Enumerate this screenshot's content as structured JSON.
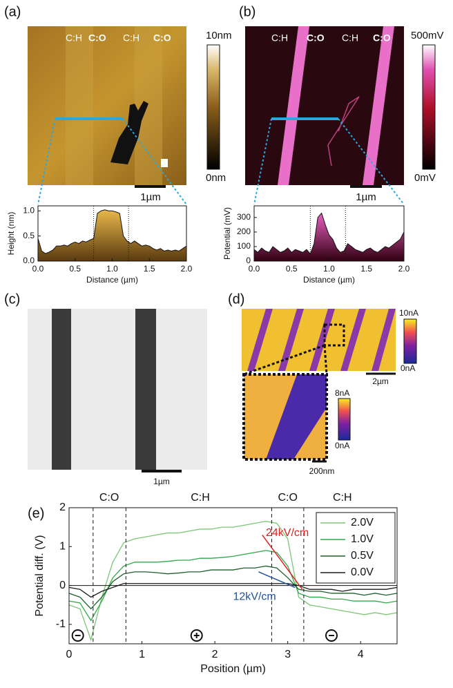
{
  "images": [
    {
      "label": "(a)",
      "texts": [
        "C:H",
        "C:O",
        "C:H",
        "C:O"
      ],
      "colorbar": [
        "10nm",
        "0nm"
      ],
      "scale": "1µm"
    },
    {
      "label": "(b)",
      "texts": [
        "C:H",
        "C:O",
        "C:H",
        "C:O"
      ],
      "colorbar": [
        "500mV",
        "0mV"
      ],
      "scale": "1µm"
    },
    {
      "label": "(c)",
      "scale": "1µm"
    },
    {
      "label": "(d)",
      "colorbar": [
        "10nA",
        "0nA"
      ],
      "scale": "2µm",
      "inset_colorbar": [
        "8nA",
        "0nA"
      ],
      "inset_scale": "200nm"
    },
    {
      "label": "(e)"
    }
  ],
  "chart_data": [
    {
      "type": "area",
      "ylabel": "Height (nm)",
      "xlabel": "Distance (µm)",
      "color": "#b8862b",
      "x": [
        0,
        0.05,
        0.1,
        0.15,
        0.2,
        0.25,
        0.3,
        0.35,
        0.4,
        0.45,
        0.5,
        0.55,
        0.6,
        0.65,
        0.7,
        0.75,
        0.8,
        0.85,
        0.9,
        0.95,
        1,
        1.05,
        1.1,
        1.15,
        1.2,
        1.25,
        1.3,
        1.35,
        1.4,
        1.45,
        1.5,
        1.55,
        1.6,
        1.65,
        1.7,
        1.75,
        1.8,
        1.85,
        1.9,
        1.95,
        2
      ],
      "values": [
        0.45,
        0.2,
        0.15,
        0.18,
        0.22,
        0.3,
        0.3,
        0.32,
        0.3,
        0.35,
        0.38,
        0.35,
        0.4,
        0.38,
        0.42,
        0.45,
        0.95,
        1,
        1.02,
        1,
        1,
        0.98,
        0.95,
        0.5,
        0.4,
        0.35,
        0.4,
        0.35,
        0.3,
        0.32,
        0.3,
        0.25,
        0.22,
        0.25,
        0.2,
        0.22,
        0.2,
        0.22,
        0.2,
        0.25,
        0.3
      ],
      "xlim": [
        0,
        2
      ],
      "ylim": [
        0,
        1.1
      ],
      "xticks": [
        {
          "value": 0,
          "label": "0.0"
        },
        {
          "value": 0.5,
          "label": "0.5"
        },
        {
          "value": 1,
          "label": "1.0"
        },
        {
          "value": 1.5,
          "label": "1.5"
        },
        {
          "value": 2,
          "label": "2.0"
        }
      ],
      "yticks": [
        {
          "value": 0,
          "label": "0.0"
        },
        {
          "value": 0.5,
          "label": "0.5"
        },
        {
          "value": 1,
          "label": "1.0"
        }
      ],
      "vlines": [
        0.75,
        1.22
      ]
    },
    {
      "type": "area",
      "ylabel": "Potential (mV)",
      "xlabel": "Distance (µm)",
      "color": "#c2237a",
      "x": [
        0,
        0.05,
        0.1,
        0.15,
        0.2,
        0.25,
        0.3,
        0.35,
        0.4,
        0.45,
        0.5,
        0.55,
        0.6,
        0.65,
        0.7,
        0.75,
        0.8,
        0.85,
        0.9,
        0.95,
        1,
        1.05,
        1.1,
        1.15,
        1.2,
        1.25,
        1.3,
        1.35,
        1.4,
        1.45,
        1.5,
        1.55,
        1.6,
        1.65,
        1.7,
        1.75,
        1.8,
        1.85,
        1.9,
        1.95,
        2
      ],
      "values": [
        80,
        60,
        90,
        70,
        60,
        100,
        80,
        60,
        70,
        90,
        60,
        80,
        70,
        60,
        80,
        50,
        120,
        300,
        330,
        250,
        180,
        150,
        90,
        60,
        70,
        120,
        100,
        80,
        70,
        60,
        80,
        90,
        70,
        60,
        80,
        100,
        90,
        110,
        130,
        150,
        200
      ],
      "xlim": [
        0,
        2
      ],
      "ylim": [
        0,
        380
      ],
      "xticks": [
        {
          "value": 0,
          "label": "0.0"
        },
        {
          "value": 0.5,
          "label": "0.5"
        },
        {
          "value": 1,
          "label": "1.0"
        },
        {
          "value": 1.5,
          "label": "1.5"
        },
        {
          "value": 2,
          "label": "2.0"
        }
      ],
      "yticks": [
        0,
        100,
        200,
        300
      ],
      "vlines": [
        0.75,
        1.22
      ]
    },
    {
      "type": "line",
      "ylabel": "Potential diff. (V)",
      "xlabel": "Position (µm)",
      "x": [
        0,
        0.15,
        0.3,
        0.45,
        0.6,
        0.75,
        0.9,
        1.05,
        1.2,
        1.35,
        1.5,
        1.65,
        1.8,
        1.95,
        2.1,
        2.25,
        2.4,
        2.55,
        2.7,
        2.85,
        3,
        3.15,
        3.3,
        3.45,
        3.6,
        3.75,
        3.9,
        4.05,
        4.2,
        4.35,
        4.5
      ],
      "series": [
        {
          "name": "2.0V",
          "color": "#7cc576",
          "values": [
            -0.5,
            -0.6,
            -1.4,
            -0.3,
            0.6,
            1.1,
            1.2,
            1.25,
            1.3,
            1.35,
            1.35,
            1.4,
            1.45,
            1.45,
            1.5,
            1.5,
            1.55,
            1.6,
            1.65,
            1.6,
            1.2,
            -0.3,
            -0.5,
            -0.55,
            -0.6,
            -0.65,
            -0.7,
            -0.75,
            -0.7,
            -0.75,
            -0.7
          ]
        },
        {
          "name": "1.0V",
          "color": "#2ea84a",
          "values": [
            -0.4,
            -0.45,
            -0.9,
            -0.4,
            0.2,
            0.5,
            0.6,
            0.6,
            0.6,
            0.62,
            0.65,
            0.65,
            0.7,
            0.7,
            0.72,
            0.75,
            0.8,
            0.85,
            0.9,
            0.85,
            0.5,
            -0.2,
            -0.3,
            -0.3,
            -0.35,
            -0.35,
            -0.4,
            -0.4,
            -0.4,
            -0.45,
            -0.4
          ]
        },
        {
          "name": "0.5V",
          "color": "#1d5e2a",
          "values": [
            -0.2,
            -0.3,
            -0.6,
            -0.3,
            0.1,
            0.3,
            0.35,
            0.35,
            0.33,
            0.3,
            0.32,
            0.35,
            0.35,
            0.4,
            0.4,
            0.4,
            0.45,
            0.45,
            0.5,
            0.45,
            0.2,
            -0.1,
            -0.15,
            -0.15,
            -0.2,
            -0.2,
            -0.2,
            -0.25,
            -0.2,
            -0.25,
            -0.2
          ]
        },
        {
          "name": "0.0V",
          "color": "#1a1a1a",
          "values": [
            -0.05,
            -0.1,
            -0.3,
            -0.15,
            -0.05,
            0.05,
            0.05,
            0.05,
            0.05,
            0.05,
            0.05,
            0.05,
            0.05,
            0.05,
            0.05,
            0.05,
            0.05,
            0.05,
            0.05,
            0.05,
            0.05,
            0,
            -0.1,
            -0.1,
            -0.1,
            -0.15,
            -0.1,
            -0.1,
            -0.1,
            -0.1,
            -0.05
          ]
        }
      ],
      "xlim": [
        0,
        4.5
      ],
      "ylim": [
        -1.5,
        2
      ],
      "xticks": [
        0,
        1,
        2,
        3,
        4
      ],
      "yticks": [
        -1,
        0,
        1,
        2
      ],
      "vlines": [
        0.33,
        0.78,
        2.78,
        3.22
      ],
      "regions": [
        {
          "label": "C:O",
          "x": 0.55
        },
        {
          "label": "C:H",
          "x": 1.8
        },
        {
          "label": "C:O",
          "x": 3.0
        },
        {
          "label": "C:H",
          "x": 3.75
        }
      ],
      "fits": [
        {
          "label": "24kV/cm",
          "color": "#e02020",
          "x": [
            2.65,
            3.2
          ],
          "y": [
            1.3,
            -0.1
          ],
          "label_x": 2.7,
          "label_y": 1.35
        },
        {
          "label": "12kV/cm",
          "color": "#2050a0",
          "x": [
            2.6,
            3.1
          ],
          "y": [
            0.35,
            -0.05
          ],
          "label_x": 2.25,
          "label_y": -0.3
        }
      ],
      "legend": "upper right"
    }
  ]
}
